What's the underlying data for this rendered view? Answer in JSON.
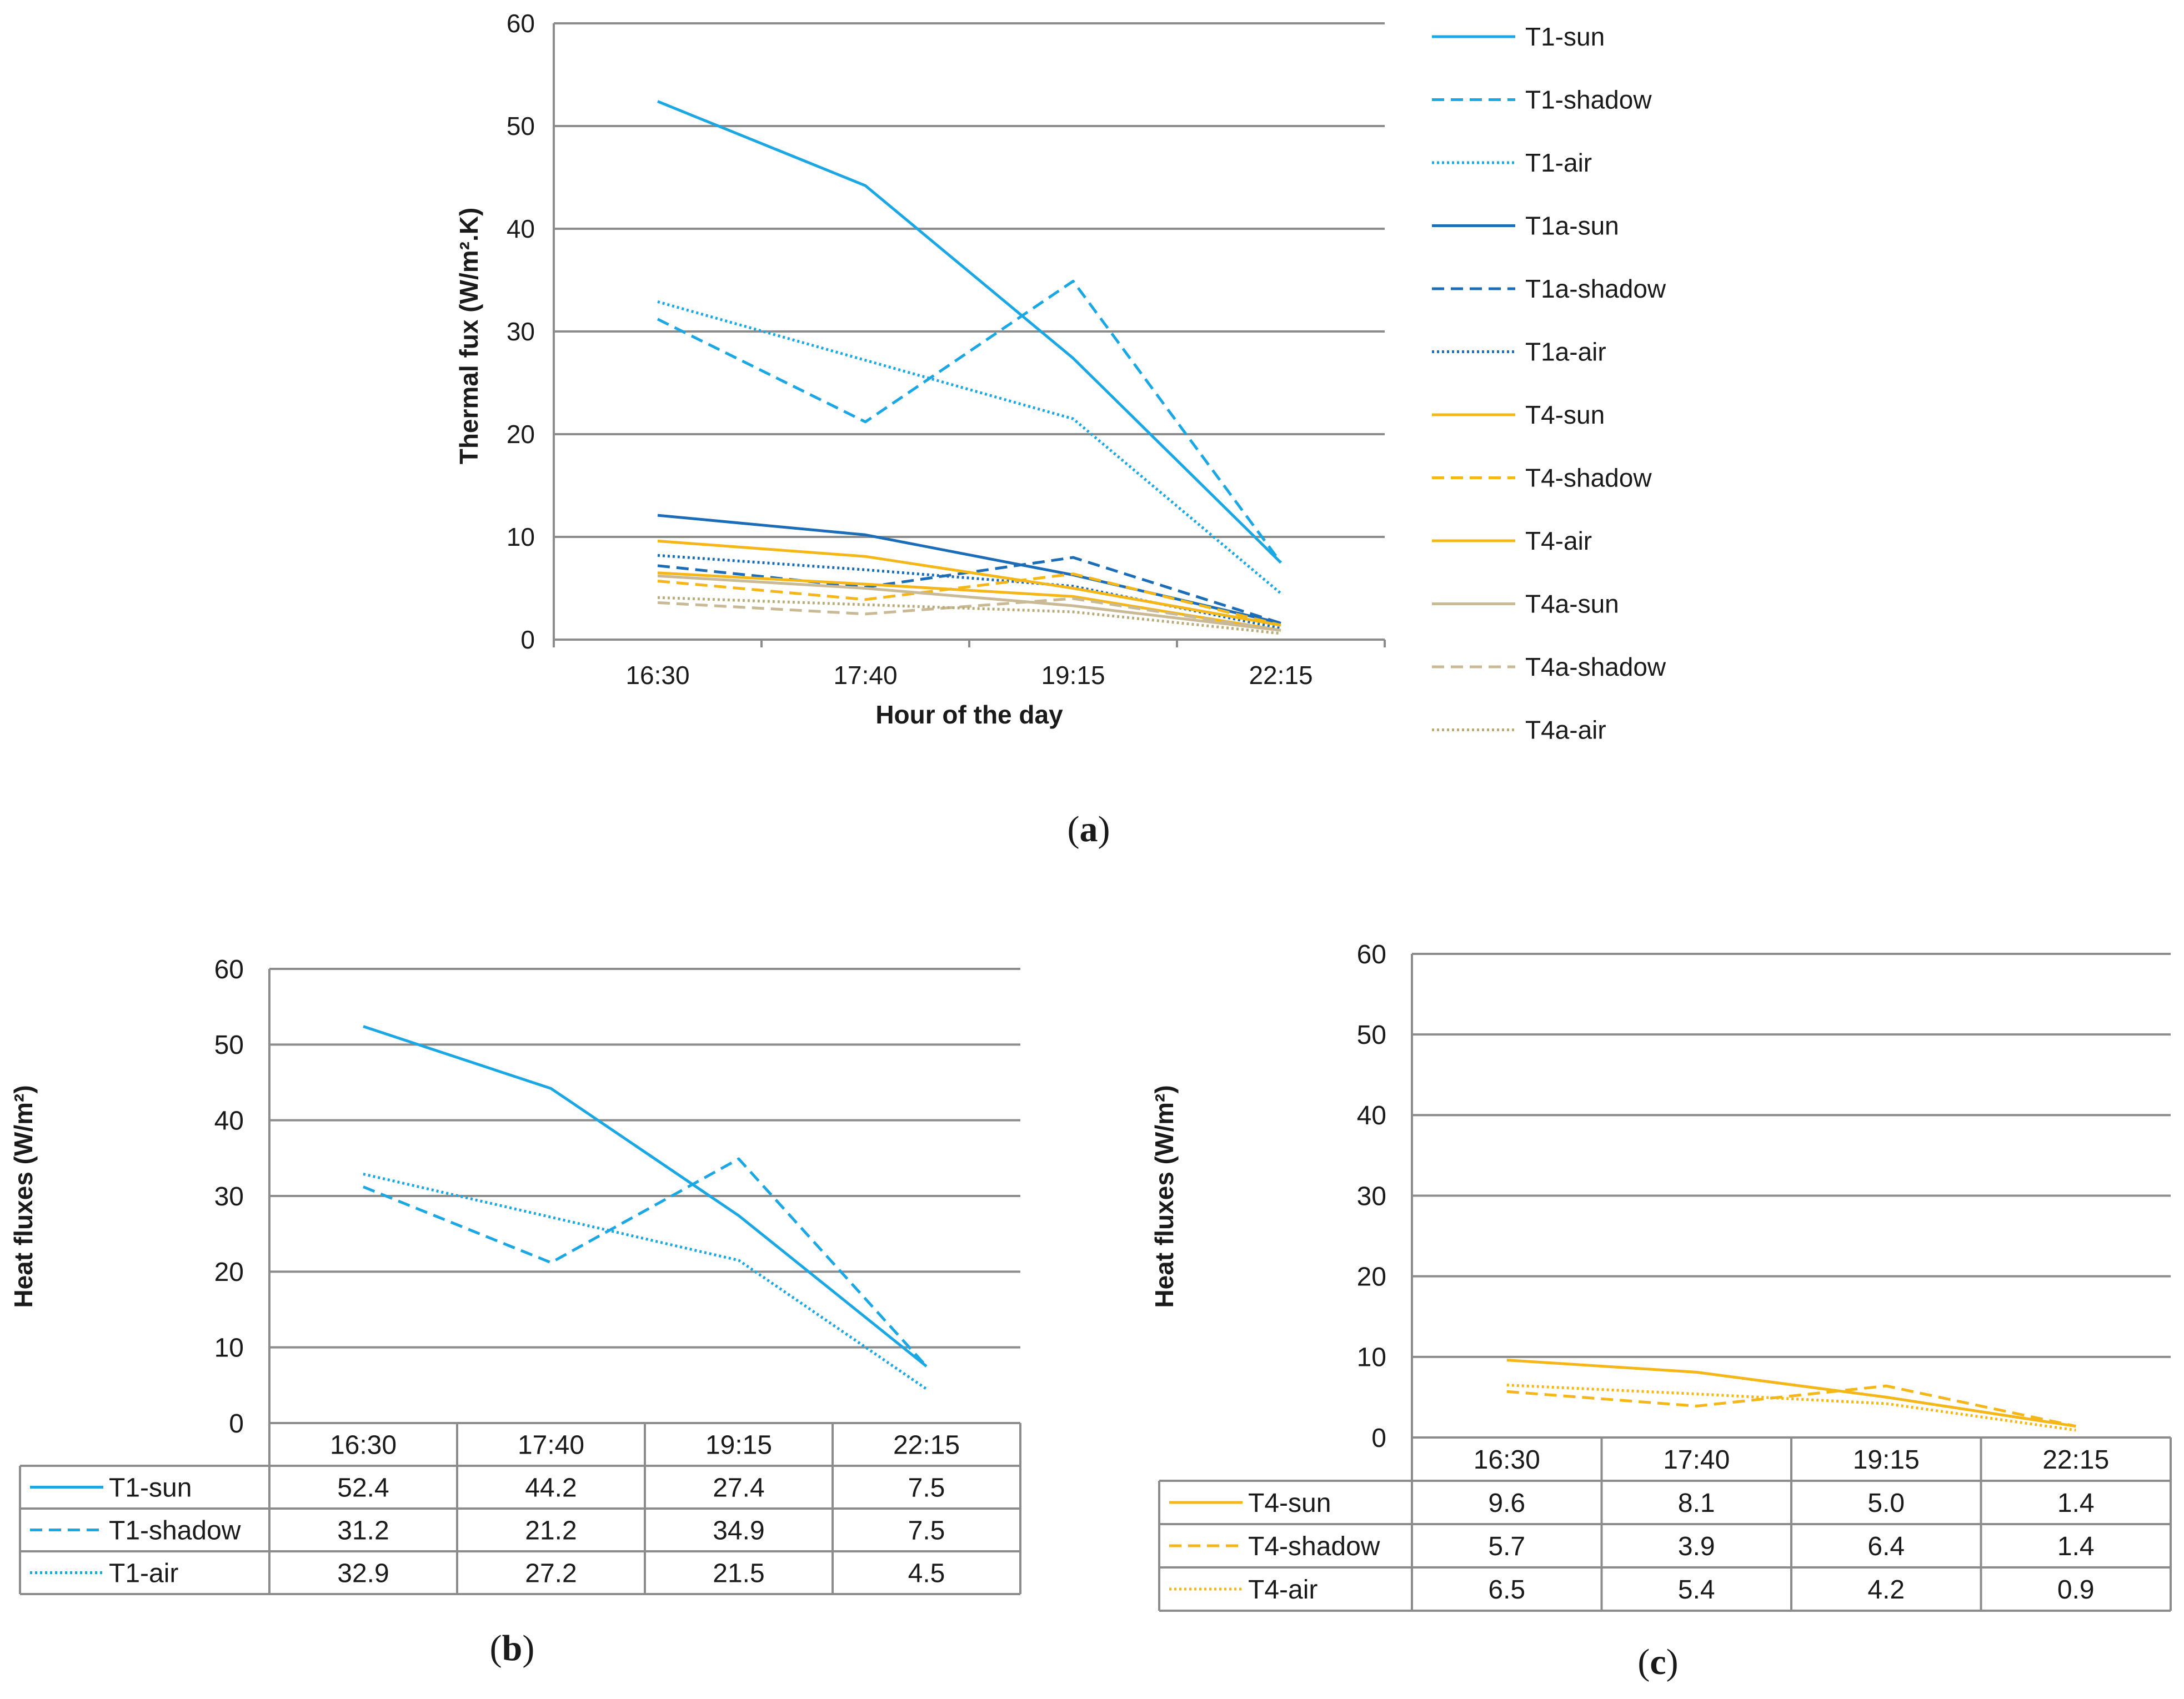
{
  "categories": [
    "16:30",
    "17:40",
    "19:15",
    "22:15"
  ],
  "chart_data": [
    {
      "type": "line",
      "panel": "a",
      "title": "",
      "xlabel": "Hour of the day",
      "ylabel": "Thermal fux (W/m².K)",
      "ylim": [
        0,
        60
      ],
      "yticks": [
        0,
        10,
        20,
        30,
        40,
        50,
        60
      ],
      "grid": true,
      "legend": "right",
      "categories": [
        "16:30",
        "17:40",
        "19:15",
        "22:15"
      ],
      "series": [
        {
          "name": "T1-sun",
          "values": [
            52.4,
            44.2,
            27.4,
            7.5
          ],
          "color": "#1aa7e3",
          "dash": "solid"
        },
        {
          "name": "T1-shadow",
          "values": [
            31.2,
            21.2,
            34.9,
            7.5
          ],
          "color": "#1aa7e3",
          "dash": "dashed"
        },
        {
          "name": "T1-air",
          "values": [
            32.9,
            27.2,
            21.5,
            4.5
          ],
          "color": "#1aa7e3",
          "dash": "dotted"
        },
        {
          "name": "T1a-sun",
          "values": [
            12.1,
            10.2,
            6.3,
            1.6
          ],
          "color": "#1b6db8",
          "dash": "solid"
        },
        {
          "name": "T1a-shadow",
          "values": [
            7.2,
            5.1,
            8.0,
            1.6
          ],
          "color": "#1b6db8",
          "dash": "dashed"
        },
        {
          "name": "T1a-air",
          "values": [
            8.2,
            6.8,
            5.2,
            1.1
          ],
          "color": "#1b6db8",
          "dash": "dotted"
        },
        {
          "name": "T4-sun",
          "values": [
            9.6,
            8.1,
            5.0,
            1.4
          ],
          "color": "#f5b718",
          "dash": "solid"
        },
        {
          "name": "T4-shadow",
          "values": [
            5.7,
            3.9,
            6.4,
            1.4
          ],
          "color": "#f5b718",
          "dash": "dashed"
        },
        {
          "name": "T4-air",
          "values": [
            6.5,
            5.4,
            4.2,
            0.9
          ],
          "color": "#f5b718",
          "dash": "solid"
        },
        {
          "name": "T4a-sun",
          "values": [
            6.2,
            5.0,
            3.3,
            0.9
          ],
          "color": "#c9b994",
          "dash": "solid"
        },
        {
          "name": "T4a-shadow",
          "values": [
            3.6,
            2.5,
            4.0,
            0.9
          ],
          "color": "#c9b994",
          "dash": "dashed"
        },
        {
          "name": "T4a-air",
          "values": [
            4.1,
            3.4,
            2.7,
            0.6
          ],
          "color": "#b8ad7a",
          "dash": "dotted"
        }
      ]
    },
    {
      "type": "line",
      "panel": "b",
      "title": "",
      "xlabel": "",
      "ylabel": "Heat fluxes (W/m²)",
      "ylim": [
        0,
        60
      ],
      "yticks": [
        0,
        10,
        20,
        30,
        40,
        50,
        60
      ],
      "grid": true,
      "legend": "data table",
      "categories": [
        "16:30",
        "17:40",
        "19:15",
        "22:15"
      ],
      "series": [
        {
          "name": "T1-sun",
          "values": [
            52.4,
            44.2,
            27.4,
            7.5
          ],
          "labels": [
            "52.4",
            "44.2",
            "27.4",
            "7.5"
          ],
          "color": "#1aa7e3",
          "dash": "solid"
        },
        {
          "name": "T1-shadow",
          "values": [
            31.2,
            21.2,
            34.9,
            7.5
          ],
          "labels": [
            "31.2",
            "21.2",
            "34.9",
            "7.5"
          ],
          "color": "#1aa7e3",
          "dash": "dashed"
        },
        {
          "name": "T1-air",
          "values": [
            32.9,
            27.2,
            21.5,
            4.5
          ],
          "labels": [
            "32.9",
            "27.2",
            "21.5",
            "4.5"
          ],
          "color": "#1aa7e3",
          "dash": "dotted"
        }
      ]
    },
    {
      "type": "line",
      "panel": "c",
      "title": "",
      "xlabel": "",
      "ylabel": "Heat fluxes (W/m²)",
      "ylim": [
        0,
        60
      ],
      "yticks": [
        0,
        10,
        20,
        30,
        40,
        50,
        60
      ],
      "grid": true,
      "legend": "data table",
      "categories": [
        "16:30",
        "17:40",
        "19:15",
        "22:15"
      ],
      "series": [
        {
          "name": "T4-sun",
          "values": [
            9.6,
            8.1,
            5.0,
            1.4
          ],
          "labels": [
            "9.6",
            "8.1",
            "5.0",
            "1.4"
          ],
          "color": "#f5b718",
          "dash": "solid"
        },
        {
          "name": "T4-shadow",
          "values": [
            5.7,
            3.9,
            6.4,
            1.4
          ],
          "labels": [
            "5.7",
            "3.9",
            "6.4",
            "1.4"
          ],
          "color": "#f5b718",
          "dash": "dashed"
        },
        {
          "name": "T4-air",
          "values": [
            6.5,
            5.4,
            4.2,
            0.9
          ],
          "labels": [
            "6.5",
            "5.4",
            "4.2",
            "0.9"
          ],
          "color": "#f5b718",
          "dash": "dotted"
        }
      ]
    }
  ],
  "captions": {
    "a": "a",
    "b": "b",
    "c": "c"
  },
  "colors": {
    "grid": "#8c8c8c",
    "axis": "#8c8c8c",
    "text": "#1a1a1a",
    "background": "#ffffff"
  }
}
